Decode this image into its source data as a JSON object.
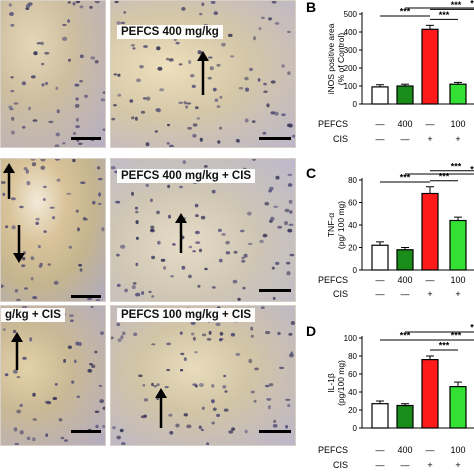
{
  "images": [
    {
      "label": "",
      "arrow": false
    },
    {
      "label": "PEFCS 400 mg/kg",
      "arrow": true
    },
    {
      "label": "",
      "arrow": true
    },
    {
      "label": "PEFCS 400 mg/kg + CIS",
      "arrow": true
    },
    {
      "label": "g/kg + CIS",
      "arrow": true
    },
    {
      "label": "PEFCS 100 mg/kg + CIS",
      "arrow": true
    }
  ],
  "colors": {
    "control": "#ffffff",
    "pefcs400": "#1a8c1a",
    "cis": "#ff1a1a",
    "pefcs100cis": "#33e033"
  },
  "chart_data": [
    {
      "type": "bar",
      "panel_letter": "B",
      "ylabel_lines": [
        "iNOS positive area",
        "(% of Control)"
      ],
      "ylim": [
        0,
        500
      ],
      "yticks": [
        0,
        100,
        200,
        300,
        400,
        500
      ],
      "tick_labels": [
        "0",
        "100",
        "200",
        "300",
        "400",
        "500"
      ],
      "values": [
        95,
        100,
        415,
        110
      ],
      "errors": [
        12,
        10,
        22,
        10
      ],
      "row_labels": [
        "PEFCS",
        "CIS"
      ],
      "pefcs_row": [
        "—",
        "400",
        "—",
        "100"
      ],
      "cis_row": [
        "—",
        "—",
        "+",
        "+"
      ],
      "significance": [
        "***",
        "***",
        "***",
        "*"
      ]
    },
    {
      "type": "bar",
      "panel_letter": "C",
      "ylabel_lines": [
        "TNF-α",
        "(pg/ 100 mg)"
      ],
      "ylim": [
        0,
        80
      ],
      "yticks": [
        0,
        20,
        40,
        60,
        80
      ],
      "tick_labels": [
        "0",
        "20",
        "40",
        "60",
        "80"
      ],
      "values": [
        22,
        18,
        68,
        44
      ],
      "errors": [
        3,
        2,
        6,
        3
      ],
      "row_labels": [
        "PEFCS",
        "CIS"
      ],
      "pefcs_row": [
        "—",
        "400",
        "—",
        "100"
      ],
      "cis_row": [
        "—",
        "—",
        "+",
        "+"
      ],
      "significance": [
        "***",
        "***",
        "***",
        "*"
      ]
    },
    {
      "type": "bar",
      "panel_letter": "D",
      "ylabel_lines": [
        "IL-1β",
        "(pg/100 mg)"
      ],
      "ylim": [
        0,
        100
      ],
      "yticks": [
        0,
        20,
        40,
        60,
        80,
        100
      ],
      "tick_labels": [
        "0",
        "20",
        "40",
        "60",
        "80",
        "100"
      ],
      "values": [
        27,
        25,
        76,
        46
      ],
      "errors": [
        3,
        2,
        4,
        5
      ],
      "row_labels": [
        "PEFCS",
        "CIS"
      ],
      "pefcs_row": [
        "—",
        "400",
        "—",
        "100"
      ],
      "cis_row": [
        "—",
        "—",
        "+",
        "+"
      ],
      "significance": [
        "***",
        "***",
        "***",
        "*"
      ]
    }
  ]
}
